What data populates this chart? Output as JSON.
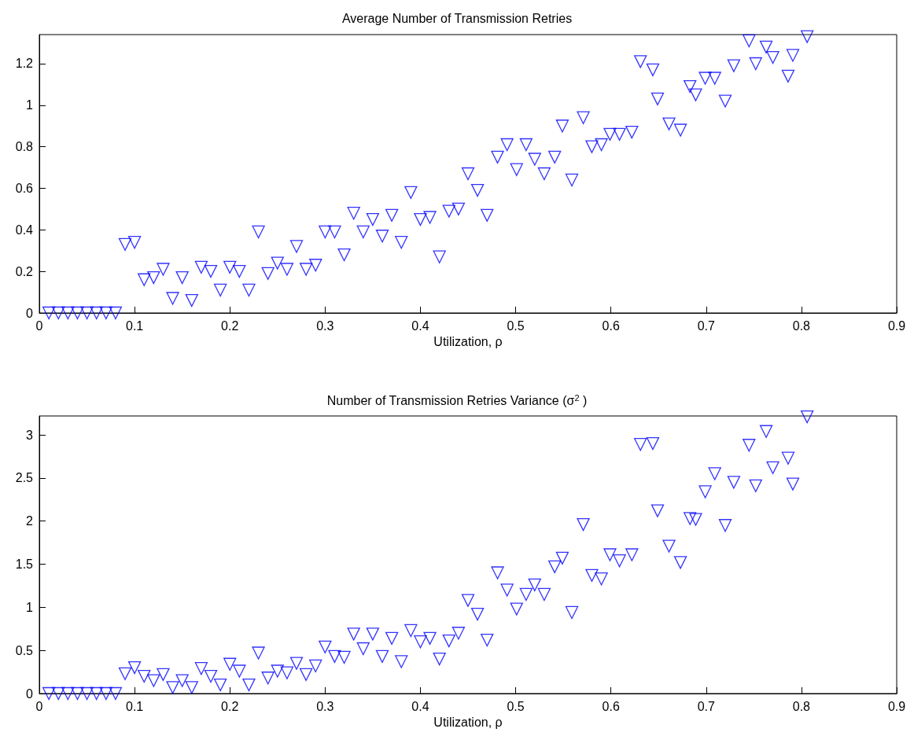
{
  "chart_data": [
    {
      "type": "scatter",
      "title": "Average Number of Transmission Retries",
      "xlabel": "Utilization, ρ",
      "marker": "triangle",
      "x": [
        0.01,
        0.02,
        0.03,
        0.04,
        0.05,
        0.06,
        0.07,
        0.08,
        0.09,
        0.1,
        0.11,
        0.12,
        0.13,
        0.14,
        0.15,
        0.16,
        0.17,
        0.18,
        0.19,
        0.2,
        0.21,
        0.22,
        0.23,
        0.24,
        0.25,
        0.26,
        0.27,
        0.28,
        0.29,
        0.3,
        0.31,
        0.32,
        0.33,
        0.34,
        0.35,
        0.36,
        0.37,
        0.38,
        0.39,
        0.4,
        0.41,
        0.42,
        0.43,
        0.44,
        0.45,
        0.46,
        0.47,
        0.481,
        0.491,
        0.501,
        0.511,
        0.52,
        0.53,
        0.541,
        0.549,
        0.559,
        0.571,
        0.58,
        0.59,
        0.599,
        0.609,
        0.622,
        0.631,
        0.644,
        0.649,
        0.661,
        0.673,
        0.683,
        0.689,
        0.699,
        0.709,
        0.72,
        0.729,
        0.745,
        0.752,
        0.763,
        0.77,
        0.786,
        0.791,
        0.806
      ],
      "series": [
        {
          "color": "#0000ff",
          "values": [
            0,
            0,
            0,
            0,
            0,
            0,
            0,
            0,
            0.33,
            0.34,
            0.16,
            0.17,
            0.21,
            0.07,
            0.17,
            0.06,
            0.22,
            0.2,
            0.11,
            0.22,
            0.2,
            0.11,
            0.39,
            0.19,
            0.24,
            0.21,
            0.32,
            0.21,
            0.23,
            0.39,
            0.39,
            0.28,
            0.48,
            0.39,
            0.45,
            0.37,
            0.47,
            0.34,
            0.58,
            0.45,
            0.46,
            0.27,
            0.49,
            0.5,
            0.67,
            0.59,
            0.47,
            0.75,
            0.81,
            0.69,
            0.81,
            0.74,
            0.67,
            0.75,
            0.9,
            0.64,
            0.94,
            0.8,
            0.81,
            0.86,
            0.86,
            0.87,
            1.21,
            1.17,
            1.03,
            0.91,
            0.88,
            1.09,
            1.05,
            1.13,
            1.13,
            1.02,
            1.19,
            1.31,
            1.2,
            1.28,
            1.23,
            1.14,
            1.24,
            1.33
          ]
        }
      ],
      "xlim": [
        0,
        0.9
      ],
      "xticks": [
        0,
        0.1,
        0.2,
        0.3,
        0.4,
        0.5,
        0.6,
        0.7,
        0.8,
        0.9
      ],
      "ylim": [
        0,
        1.34
      ],
      "yticks": [
        0,
        0.2,
        0.4,
        0.6,
        0.8,
        1,
        1.2
      ]
    },
    {
      "type": "scatter",
      "title": "Number of Transmission Retries Variance (σ$^{2}$ )",
      "xlabel": "Utilization, ρ",
      "marker": "triangle",
      "x": [
        0.01,
        0.02,
        0.03,
        0.04,
        0.05,
        0.06,
        0.07,
        0.08,
        0.09,
        0.1,
        0.11,
        0.12,
        0.13,
        0.14,
        0.15,
        0.16,
        0.17,
        0.18,
        0.19,
        0.2,
        0.21,
        0.22,
        0.23,
        0.24,
        0.25,
        0.26,
        0.27,
        0.28,
        0.29,
        0.3,
        0.31,
        0.32,
        0.33,
        0.34,
        0.35,
        0.36,
        0.37,
        0.38,
        0.39,
        0.4,
        0.41,
        0.42,
        0.43,
        0.44,
        0.45,
        0.46,
        0.47,
        0.481,
        0.491,
        0.501,
        0.511,
        0.52,
        0.53,
        0.541,
        0.549,
        0.559,
        0.571,
        0.58,
        0.59,
        0.599,
        0.609,
        0.622,
        0.631,
        0.644,
        0.649,
        0.661,
        0.673,
        0.683,
        0.689,
        0.699,
        0.709,
        0.72,
        0.729,
        0.745,
        0.752,
        0.763,
        0.77,
        0.786,
        0.791,
        0.806
      ],
      "series": [
        {
          "color": "#0000ff",
          "values": [
            0,
            0,
            0,
            0,
            0,
            0,
            0,
            0,
            0.23,
            0.3,
            0.2,
            0.15,
            0.22,
            0.07,
            0.15,
            0.07,
            0.29,
            0.2,
            0.1,
            0.34,
            0.26,
            0.1,
            0.47,
            0.18,
            0.26,
            0.24,
            0.35,
            0.22,
            0.32,
            0.54,
            0.43,
            0.42,
            0.69,
            0.52,
            0.69,
            0.43,
            0.64,
            0.37,
            0.73,
            0.6,
            0.64,
            0.4,
            0.61,
            0.7,
            1.08,
            0.92,
            0.62,
            1.4,
            1.2,
            0.98,
            1.15,
            1.26,
            1.15,
            1.47,
            1.57,
            0.94,
            1.96,
            1.37,
            1.33,
            1.61,
            1.54,
            1.61,
            2.89,
            2.9,
            2.12,
            1.71,
            1.52,
            2.03,
            2.02,
            2.34,
            2.55,
            1.95,
            2.45,
            2.88,
            2.41,
            3.04,
            2.62,
            2.73,
            2.43,
            3.21
          ]
        }
      ],
      "xlim": [
        0,
        0.9
      ],
      "xticks": [
        0,
        0.1,
        0.2,
        0.3,
        0.4,
        0.5,
        0.6,
        0.7,
        0.8,
        0.9
      ],
      "ylim": [
        0,
        3.22
      ],
      "yticks": [
        0,
        0.5,
        1,
        1.5,
        2,
        2.5,
        3
      ]
    }
  ]
}
